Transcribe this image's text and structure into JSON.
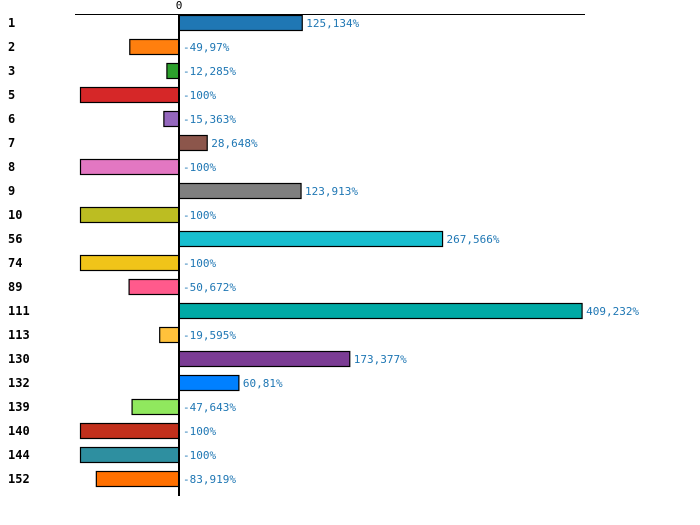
{
  "chart_data": {
    "type": "bar",
    "orientation": "horizontal",
    "title": "",
    "xlabel": "",
    "ylabel": "",
    "zero_tick_label": "0",
    "xlim": [
      -100,
      415
    ],
    "grid": false,
    "categories": [
      "1",
      "2",
      "3",
      "5",
      "6",
      "7",
      "8",
      "9",
      "10",
      "56",
      "74",
      "89",
      "111",
      "113",
      "130",
      "132",
      "139",
      "140",
      "144",
      "152"
    ],
    "values": [
      125.134,
      -49.97,
      -12.285,
      -100,
      -15.363,
      28.648,
      -100,
      123.913,
      -100,
      267.566,
      -100,
      -50.672,
      409.232,
      -19.595,
      173.377,
      60.81,
      -47.643,
      -100,
      -100,
      -83.919
    ],
    "value_labels": [
      "125,134%",
      "-49,97%",
      "-12,285%",
      "-100%",
      "-15,363%",
      "28,648%",
      "-100%",
      "123,913%",
      "-100%",
      "267,566%",
      "-100%",
      "-50,672%",
      "409,232%",
      "-19,595%",
      "173,377%",
      "60,81%",
      "-47,643%",
      "-100%",
      "-100%",
      "-83,919%"
    ],
    "colors": [
      "#1f77b4",
      "#ff7f0e",
      "#2ca02c",
      "#d62728",
      "#9467bd",
      "#8c564b",
      "#e377c2",
      "#7f7f7f",
      "#bcbd22",
      "#17becf",
      "#f0c419",
      "#ff5a8c",
      "#00aaa5",
      "#ffc13b",
      "#7b3c94",
      "#0080ff",
      "#90e85e",
      "#c2301c",
      "#2e8fa0",
      "#ff7000"
    ],
    "label_color": "#1f77b4"
  }
}
